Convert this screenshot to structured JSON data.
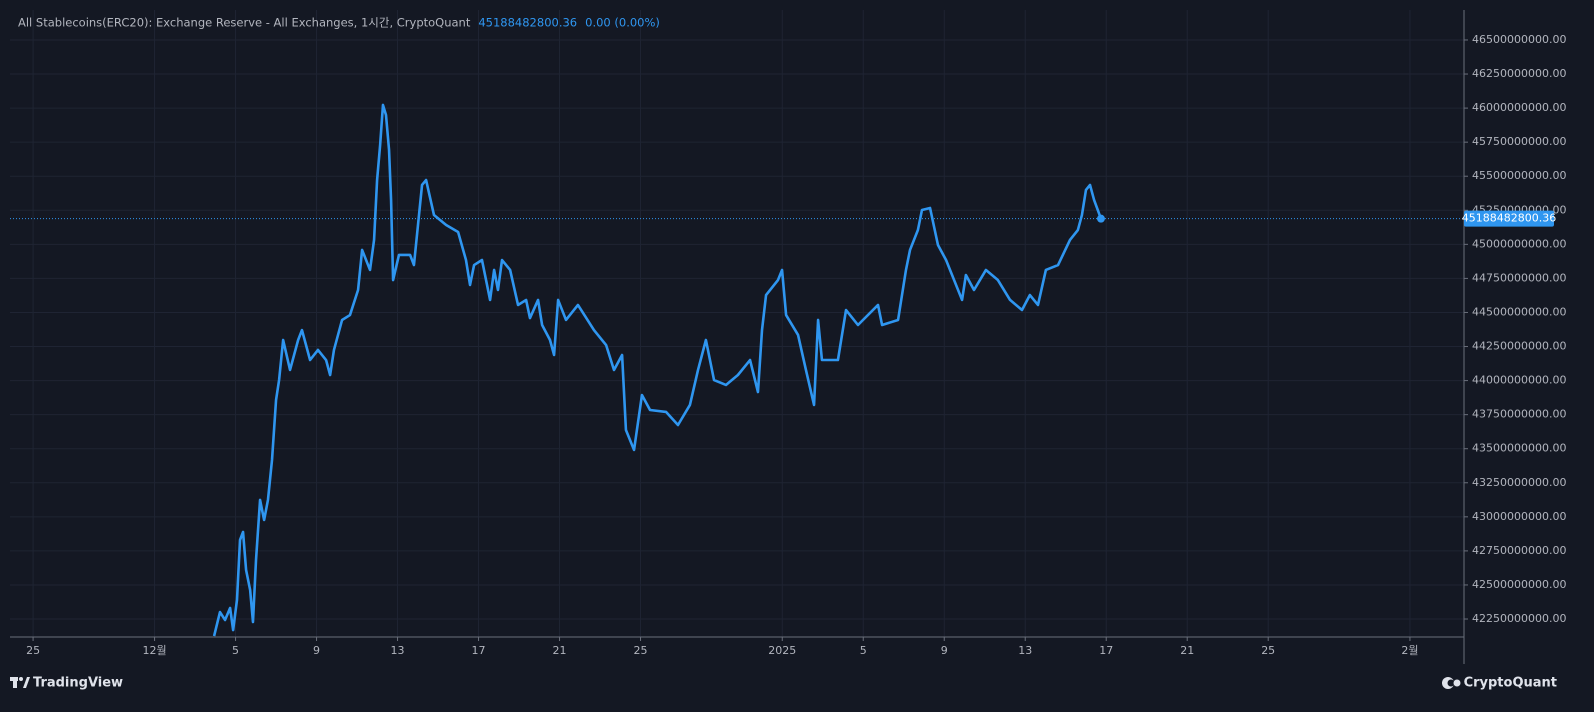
{
  "chart_data": {
    "type": "line",
    "title": "All Stablecoins(ERC20): Exchange Reserve - All Exchanges, 1시간, CryptoQuant",
    "change": "0.00 (0.00%)",
    "footer_left": "TradingView",
    "footer_right": "CryptoQuant",
    "grid": true,
    "axis_side": "right",
    "x": [
      8.94,
      9.23,
      9.48,
      9.73,
      9.88,
      10.07,
      10.22,
      10.37,
      10.52,
      10.72,
      10.86,
      11.01,
      11.21,
      11.41,
      11.6,
      11.8,
      12.0,
      12.15,
      12.35,
      12.69,
      13.09,
      13.28,
      13.68,
      14.07,
      14.47,
      14.67,
      14.86,
      15.26,
      15.65,
      16.05,
      16.25,
      16.64,
      16.84,
      16.99,
      17.14,
      17.28,
      17.43,
      17.58,
      17.68,
      17.78,
      18.07,
      18.62,
      18.81,
      19.01,
      19.21,
      19.41,
      19.8,
      20.4,
      20.99,
      21.38,
      21.58,
      21.78,
      22.17,
      22.57,
      22.77,
      22.96,
      23.16,
      23.56,
      23.95,
      24.35,
      24.54,
      24.94,
      25.14,
      25.53,
      25.73,
      25.93,
      26.32,
      26.91,
      27.7,
      28.3,
      28.69,
      29.09,
      29.28,
      29.68,
      30.07,
      30.47,
      31.26,
      31.85,
      32.44,
      32.84,
      33.23,
      33.63,
      34.22,
      34.81,
      35.41,
      35.8,
      36.0,
      36.2,
      36.79,
      36.99,
      37.19,
      37.78,
      38.17,
      38.57,
      38.77,
      38.96,
      39.75,
      40.15,
      40.74,
      41.73,
      41.93,
      42.72,
      43.11,
      43.31,
      43.7,
      43.9,
      44.3,
      44.69,
      45.09,
      45.88,
      46.07,
      46.47,
      47.06,
      47.65,
      48.25,
      48.84,
      49.23,
      49.63,
      50.02,
      50.62,
      51.21,
      51.6,
      51.8,
      52.0,
      52.2,
      52.4,
      52.74
    ],
    "series": [
      {
        "color": "#2f96f0",
        "values": [
          42125000000,
          42301000000,
          42243000000,
          42331000000,
          42169000000,
          42390000000,
          42830000000,
          42889000000,
          42610000000,
          42463000000,
          42228000000,
          42683000000,
          43124000000,
          42977000000,
          43124000000,
          43417000000,
          43858000000,
          44004000000,
          44298000000,
          44078000000,
          44298000000,
          44371000000,
          44151000000,
          44225000000,
          44151000000,
          44041000000,
          44225000000,
          44445000000,
          44481000000,
          44665000000,
          44959000000,
          44812000000,
          45032000000,
          45472000000,
          45729000000,
          46023000000,
          45949000000,
          45693000000,
          45326000000,
          44738000000,
          44922000000,
          44922000000,
          44848000000,
          45142000000,
          45436000000,
          45472000000,
          45215000000,
          45142000000,
          45091000000,
          44885000000,
          44702000000,
          44848000000,
          44885000000,
          44592000000,
          44812000000,
          44665000000,
          44885000000,
          44812000000,
          44555000000,
          44592000000,
          44459000000,
          44592000000,
          44408000000,
          44298000000,
          44188000000,
          44592000000,
          44445000000,
          44555000000,
          44371000000,
          44261000000,
          44078000000,
          44188000000,
          43637000000,
          43491000000,
          43894000000,
          43784000000,
          43770000000,
          43674000000,
          43821000000,
          44078000000,
          44298000000,
          44004000000,
          43968000000,
          44041000000,
          44151000000,
          43916000000,
          44371000000,
          44628000000,
          44738000000,
          44812000000,
          44481000000,
          44335000000,
          44078000000,
          43821000000,
          44445000000,
          44151000000,
          44151000000,
          44518000000,
          44408000000,
          44555000000,
          44408000000,
          44445000000,
          44812000000,
          44959000000,
          45105000000,
          45252000000,
          45267000000,
          44995000000,
          44885000000,
          44592000000,
          44775000000,
          44665000000,
          44812000000,
          44738000000,
          44592000000,
          44518000000,
          44628000000,
          44555000000,
          44812000000,
          44848000000,
          45032000000,
          45105000000,
          45215000000,
          45399000000,
          45436000000,
          45326000000,
          45188482800.36
        ]
      }
    ],
    "xlim": [
      -1.14,
      70.67
    ],
    "xticks": [
      {
        "value": 0,
        "label": "25"
      },
      {
        "value": 6,
        "label": "12월"
      },
      {
        "value": 10,
        "label": "5"
      },
      {
        "value": 14,
        "label": "9"
      },
      {
        "value": 18,
        "label": "13"
      },
      {
        "value": 22,
        "label": "17"
      },
      {
        "value": 26,
        "label": "21"
      },
      {
        "value": 30,
        "label": "25"
      },
      {
        "value": 37,
        "label": "2025"
      },
      {
        "value": 41,
        "label": "5"
      },
      {
        "value": 45,
        "label": "9"
      },
      {
        "value": 49,
        "label": "13"
      },
      {
        "value": 53,
        "label": "17"
      },
      {
        "value": 57,
        "label": "21"
      },
      {
        "value": 61,
        "label": "25"
      },
      {
        "value": 68,
        "label": "2월"
      }
    ],
    "ylim": [
      42118000000,
      46720000000
    ],
    "yticks": [
      {
        "value": 42250000000,
        "label": "42250000000.00"
      },
      {
        "value": 42500000000,
        "label": "42500000000.00"
      },
      {
        "value": 42750000000,
        "label": "42750000000.00"
      },
      {
        "value": 43000000000,
        "label": "43000000000.00"
      },
      {
        "value": 43250000000,
        "label": "43250000000.00"
      },
      {
        "value": 43500000000,
        "label": "43500000000.00"
      },
      {
        "value": 43750000000,
        "label": "43750000000.00"
      },
      {
        "value": 44000000000,
        "label": "44000000000.00"
      },
      {
        "value": 44250000000,
        "label": "44250000000.00"
      },
      {
        "value": 44500000000,
        "label": "44500000000.00"
      },
      {
        "value": 44750000000,
        "label": "44750000000.00"
      },
      {
        "value": 45000000000,
        "label": "45000000000.00"
      },
      {
        "value": 45250000000,
        "label": "45250000000.00"
      },
      {
        "value": 45500000000,
        "label": "45500000000.00"
      },
      {
        "value": 45750000000,
        "label": "45750000000.00"
      },
      {
        "value": 46000000000,
        "label": "46000000000.00"
      },
      {
        "value": 46250000000,
        "label": "46250000000.00"
      },
      {
        "value": 46500000000,
        "label": "46500000000.00"
      }
    ]
  }
}
